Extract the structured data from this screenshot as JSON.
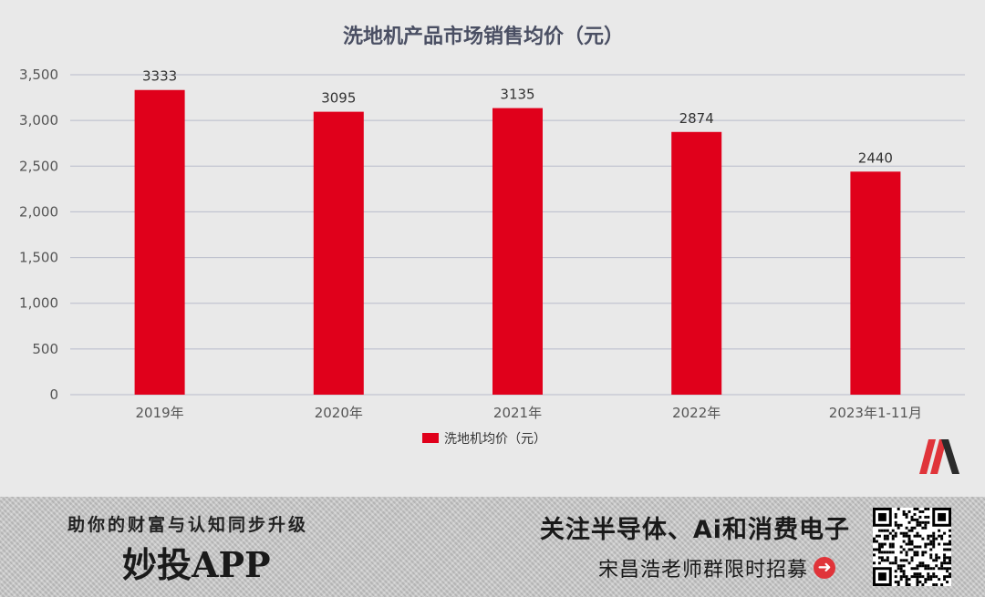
{
  "chart_data": {
    "type": "bar",
    "title": "洗地机产品市场销售均价（元）",
    "categories": [
      "2019年",
      "2020年",
      "2021年",
      "2022年",
      "2023年1-11月"
    ],
    "series": [
      {
        "name": "洗地机均价（元）",
        "values": [
          3333,
          3095,
          3135,
          2874,
          2440
        ],
        "color": "#e0001b"
      }
    ],
    "data_labels": [
      "3333",
      "3095",
      "3135",
      "2874",
      "2440"
    ],
    "yticks": [
      "0",
      "500",
      "1,000",
      "1,500",
      "2,000",
      "2,500",
      "3,000",
      "3,500"
    ],
    "ylim": [
      0,
      3500
    ],
    "grid": true,
    "legend_position": "bottom"
  },
  "colors": {
    "bar": "#e0001b",
    "grid": "#b9bccb",
    "title": "#4a4f63",
    "logo_red": "#e0343a",
    "logo_dark": "#2b2b2b"
  },
  "banner": {
    "slogan": "助你的财富与认知同步升级",
    "app_name": "妙投APP",
    "promo_main": "关注半导体、Ai和消费电子",
    "promo_sub": "宋昌浩老师群限时招募",
    "arrow_icon": "arrow-right-circle-icon",
    "qr_icon": "qr-code-icon"
  },
  "logo_icon": "m-logo-icon"
}
